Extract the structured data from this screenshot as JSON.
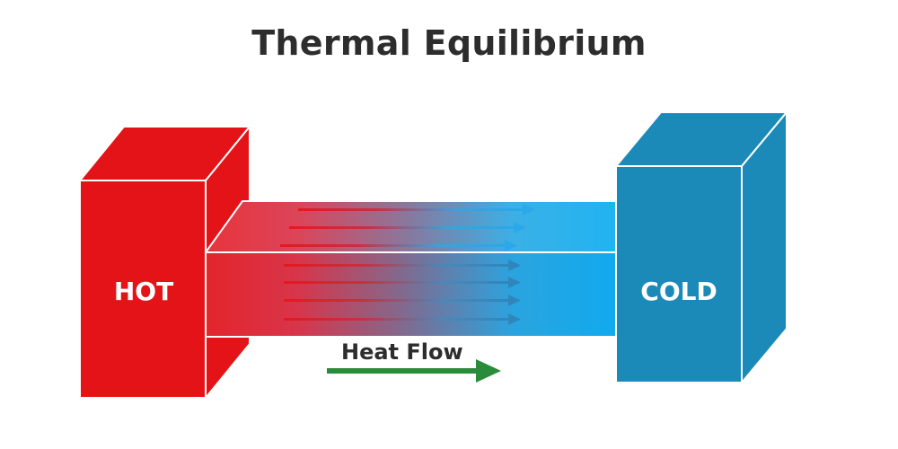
{
  "title": "Thermal Equilibrium",
  "hot_block": {
    "label": "HOT",
    "color": "#e41318"
  },
  "cold_block": {
    "label": "COLD",
    "color": "#1c8ab8"
  },
  "heat_flow": {
    "label": "Heat Flow",
    "arrow_color": "#2a8c3a"
  },
  "icons": [
    "heat-flow-arrow-icon"
  ]
}
